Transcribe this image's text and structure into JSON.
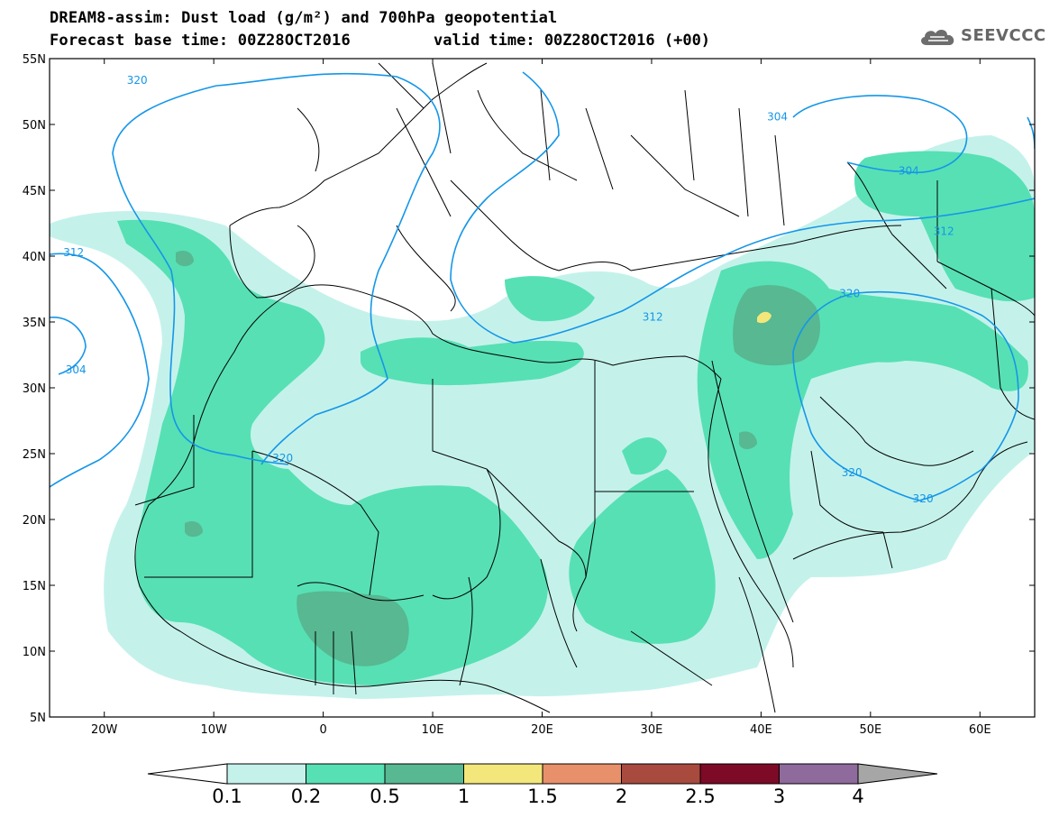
{
  "header": {
    "title": "DREAM8-assim: Dust load (g/m²) and 700hPa geopotential",
    "base_time_label": "Forecast base time: 00Z28OCT2016",
    "valid_time_label": "valid time: 00Z28OCT2016 (+00)",
    "logo_text": "SEEVCCC"
  },
  "map": {
    "lon_range": [
      -25,
      65
    ],
    "lat_range": [
      5,
      55
    ],
    "lat_ticks": [
      "5N",
      "10N",
      "15N",
      "20N",
      "25N",
      "30N",
      "35N",
      "40N",
      "45N",
      "50N",
      "55N"
    ],
    "lon_ticks": [
      "20W",
      "10W",
      "0",
      "10E",
      "20E",
      "30E",
      "40E",
      "50E",
      "60E"
    ],
    "contour_labels": [
      {
        "text": "320",
        "lon": -17,
        "lat": 53.3
      },
      {
        "text": "312",
        "lon": -22.8,
        "lat": 40.2
      },
      {
        "text": "304",
        "lon": -22.6,
        "lat": 31.3
      },
      {
        "text": "320",
        "lon": -3.7,
        "lat": 24.6
      },
      {
        "text": "304",
        "lon": 41.5,
        "lat": 50.5
      },
      {
        "text": "304",
        "lon": 53.5,
        "lat": 46.4
      },
      {
        "text": "312",
        "lon": 56.7,
        "lat": 41.8
      },
      {
        "text": "312",
        "lon": 30.1,
        "lat": 35.3
      },
      {
        "text": "320",
        "lon": 48.1,
        "lat": 37.1
      },
      {
        "text": "320",
        "lon": 48.3,
        "lat": 23.5
      },
      {
        "text": "320",
        "lon": 54.8,
        "lat": 21.5
      }
    ],
    "colors": {
      "contour": "#1596e8",
      "c01": "#c4f2eb",
      "c02": "#57e0b4",
      "c05": "#57b892",
      "c1": "#f3e77b",
      "border": "#000000"
    }
  },
  "colorbar": {
    "labels": [
      "0.1",
      "0.2",
      "0.5",
      "1",
      "1.5",
      "2",
      "2.5",
      "3",
      "4"
    ],
    "colors": [
      "#c4f2eb",
      "#57e0b4",
      "#57b892",
      "#f3e77b",
      "#e8906a",
      "#a94a3e",
      "#7d0a26",
      "#8e6b9c"
    ],
    "under_color": "#ffffff",
    "over_color": "#a6a6a6"
  }
}
